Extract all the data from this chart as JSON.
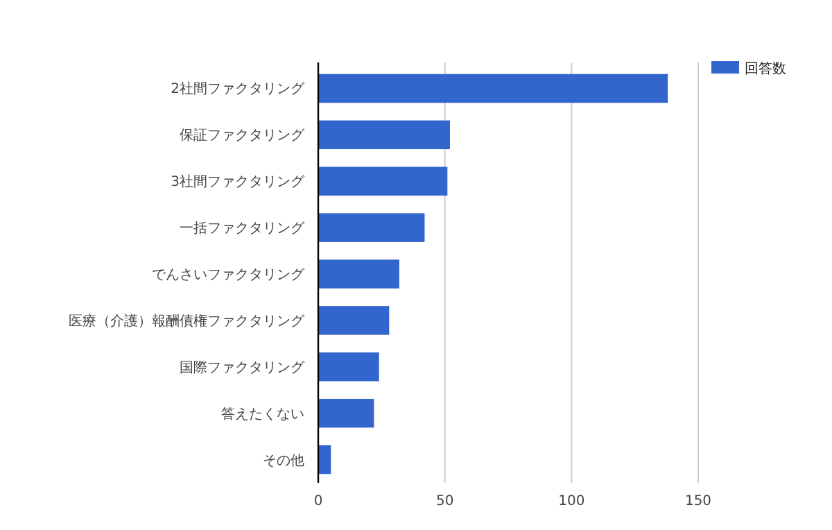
{
  "chart_data": {
    "type": "bar",
    "orientation": "horizontal",
    "categories": [
      "2社間ファクタリング",
      "保証ファクタリング",
      "3社間ファクタリング",
      "一括ファクタリング",
      "でんさいファクタリング",
      "医療（介護）報酬債権ファクタリング",
      "国際ファクタリング",
      "答えたくない",
      "その他"
    ],
    "series": [
      {
        "name": "回答数",
        "color": "#3366cc",
        "values": [
          138,
          52,
          51,
          42,
          32,
          28,
          24,
          22,
          5
        ]
      }
    ],
    "xlim": [
      0,
      150
    ],
    "xticks": [
      0,
      50,
      100,
      150
    ],
    "grid": "x",
    "legend": "top right"
  }
}
